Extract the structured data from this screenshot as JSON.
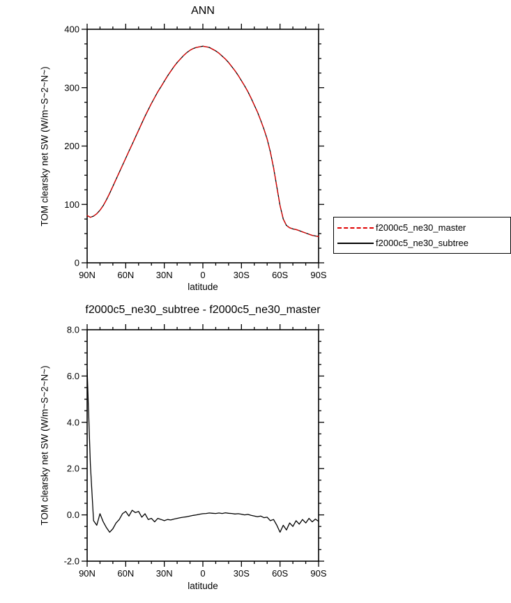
{
  "figure": {
    "background": "#ffffff"
  },
  "chart_data": [
    {
      "type": "line",
      "title": "ANN",
      "xlabel": "latitude",
      "ylabel": "TOM clearsky net SW (W/m~S~2~N~)",
      "xlim": [
        90,
        -90
      ],
      "ylim": [
        0,
        400
      ],
      "xticks": {
        "values": [
          90,
          60,
          30,
          0,
          -30,
          -60,
          -90
        ],
        "labels": [
          "90N",
          "60N",
          "30N",
          "0",
          "30S",
          "60S",
          "90S"
        ]
      },
      "yticks": {
        "values": [
          0,
          100,
          200,
          300,
          400
        ],
        "labels": [
          "0",
          "100",
          "200",
          "300",
          "400"
        ]
      },
      "x_minor_step": 10,
      "y_minor_step": 25,
      "legend": {
        "position": "outside-right",
        "border": true
      },
      "x": [
        90,
        87.5,
        85,
        82.5,
        80,
        77.5,
        75,
        72.5,
        70,
        67.5,
        65,
        62.5,
        60,
        57.5,
        55,
        52.5,
        50,
        47.5,
        45,
        42.5,
        40,
        37.5,
        35,
        32.5,
        30,
        27.5,
        25,
        22.5,
        20,
        17.5,
        15,
        12.5,
        10,
        7.5,
        5,
        2.5,
        0,
        -2.5,
        -5,
        -7.5,
        -10,
        -12.5,
        -15,
        -17.5,
        -20,
        -22.5,
        -25,
        -27.5,
        -30,
        -32.5,
        -35,
        -37.5,
        -40,
        -42.5,
        -45,
        -47.5,
        -50,
        -52.5,
        -55,
        -57.5,
        -60,
        -62.5,
        -65,
        -67.5,
        -70,
        -72.5,
        -75,
        -77.5,
        -80,
        -82.5,
        -85,
        -87.5,
        -90
      ],
      "series": [
        {
          "name": "f2000c5_ne30_master",
          "color": "#e00000",
          "dash": [
            7,
            4
          ],
          "values": [
            81,
            78,
            80,
            84,
            90,
            98,
            108,
            119,
            131,
            143,
            155,
            167,
            179,
            191,
            203,
            215,
            227,
            239,
            251,
            262,
            273,
            283,
            293,
            302,
            311,
            320,
            328,
            336,
            343,
            349,
            355,
            360,
            364,
            367,
            369,
            370,
            371,
            370,
            369,
            366,
            363,
            359,
            354,
            349,
            343,
            336,
            329,
            321,
            312,
            303,
            293,
            282,
            270,
            258,
            244,
            229,
            212,
            190,
            163,
            130,
            98,
            75,
            64,
            60,
            58,
            57,
            55,
            53,
            51,
            49,
            47,
            46,
            45
          ]
        },
        {
          "name": "f2000c5_ne30_subtree",
          "color": "#000000",
          "dash": null,
          "values": [
            81,
            78,
            80,
            84,
            90,
            98,
            108,
            119,
            131,
            143,
            155,
            167,
            179,
            191,
            203,
            215,
            227,
            239,
            251,
            262,
            273,
            283,
            293,
            302,
            311,
            320,
            328,
            336,
            343,
            349,
            355,
            360,
            364,
            367,
            369,
            370,
            371,
            370,
            369,
            366,
            363,
            359,
            354,
            349,
            343,
            336,
            329,
            321,
            312,
            303,
            293,
            282,
            270,
            258,
            244,
            229,
            212,
            190,
            163,
            130,
            98,
            75,
            64,
            60,
            58,
            57,
            55,
            53,
            51,
            49,
            47,
            46,
            45
          ]
        }
      ]
    },
    {
      "type": "line",
      "title": "f2000c5_ne30_subtree - f2000c5_ne30_master",
      "xlabel": "latitude",
      "ylabel": "TOM clearsky net SW (W/m~S~2~N~)",
      "xlim": [
        90,
        -90
      ],
      "ylim": [
        -2,
        8
      ],
      "xticks": {
        "values": [
          90,
          60,
          30,
          0,
          -30,
          -60,
          -90
        ],
        "labels": [
          "90N",
          "60N",
          "30N",
          "0",
          "30S",
          "60S",
          "90S"
        ]
      },
      "yticks": {
        "values": [
          -2,
          0,
          2,
          4,
          6,
          8
        ],
        "labels": [
          "-2.0",
          "0.0",
          "2.0",
          "4.0",
          "6.0",
          "8.0"
        ]
      },
      "x_minor_step": 10,
      "y_minor_step": 0.5,
      "legend": null,
      "x": [
        90,
        87.5,
        85,
        82.5,
        80,
        77.5,
        75,
        72.5,
        70,
        67.5,
        65,
        62.5,
        60,
        57.5,
        55,
        52.5,
        50,
        47.5,
        45,
        42.5,
        40,
        37.5,
        35,
        32.5,
        30,
        27.5,
        25,
        22.5,
        20,
        17.5,
        15,
        12.5,
        10,
        7.5,
        5,
        2.5,
        0,
        -2.5,
        -5,
        -7.5,
        -10,
        -12.5,
        -15,
        -17.5,
        -20,
        -22.5,
        -25,
        -27.5,
        -30,
        -32.5,
        -35,
        -37.5,
        -40,
        -42.5,
        -45,
        -47.5,
        -50,
        -52.5,
        -55,
        -57.5,
        -60,
        -62.5,
        -65,
        -67.5,
        -70,
        -72.5,
        -75,
        -77.5,
        -80,
        -82.5,
        -85,
        -87.5,
        -90
      ],
      "series": [
        {
          "name": "f2000c5_ne30_subtree - f2000c5_ne30_master",
          "color": "#000000",
          "dash": null,
          "values": [
            6.3,
            2.2,
            -0.25,
            -0.45,
            0.05,
            -0.3,
            -0.55,
            -0.75,
            -0.6,
            -0.35,
            -0.2,
            0.05,
            0.15,
            -0.05,
            0.2,
            0.1,
            0.15,
            -0.1,
            0.05,
            -0.2,
            -0.15,
            -0.3,
            -0.15,
            -0.2,
            -0.25,
            -0.2,
            -0.22,
            -0.18,
            -0.15,
            -0.12,
            -0.1,
            -0.08,
            -0.05,
            -0.02,
            0,
            0.03,
            0.05,
            0.06,
            0.08,
            0.07,
            0.06,
            0.08,
            0.06,
            0.09,
            0.07,
            0.06,
            0.04,
            0.05,
            0.03,
            0,
            0.02,
            -0.02,
            -0.05,
            -0.08,
            -0.05,
            -0.12,
            -0.1,
            -0.25,
            -0.2,
            -0.45,
            -0.75,
            -0.45,
            -0.65,
            -0.35,
            -0.5,
            -0.25,
            -0.4,
            -0.2,
            -0.35,
            -0.15,
            -0.3,
            -0.18,
            -0.28
          ]
        }
      ]
    }
  ]
}
